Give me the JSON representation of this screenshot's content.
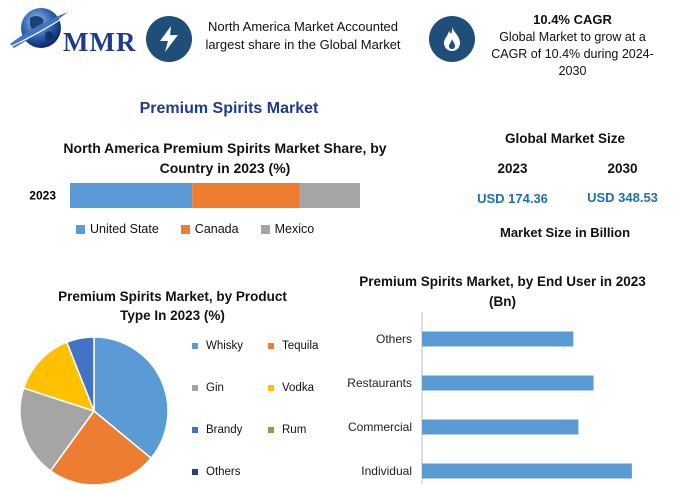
{
  "logo": {
    "text": "MMR"
  },
  "header": {
    "left_text": "North America Market Accounted largest share in the Global Market",
    "right_title": "10.4% CAGR",
    "right_text": "Global Market to grow at a CAGR of 10.4% during 2024-2030",
    "left_icon": "lightning-icon",
    "right_icon": "flame-icon"
  },
  "main_title": "Premium Spirits Market",
  "market_size": {
    "title": "Global Market Size",
    "years": [
      "2023",
      "2030"
    ],
    "values": [
      "USD 174.36",
      "USD 348.53"
    ],
    "footer": "Market Size in Billion"
  },
  "chart_data": [
    {
      "type": "bar",
      "orientation": "horizontal",
      "stacked": true,
      "title": "North America Premium Spirits Market Share, by Country in 2023 (%)",
      "categories": [
        "2023"
      ],
      "series": [
        {
          "name": "United State",
          "values": [
            41
          ],
          "color": "#5b9bd5"
        },
        {
          "name": "Canada",
          "values": [
            36
          ],
          "color": "#ed7d31"
        },
        {
          "name": "Mexico",
          "values": [
            23
          ],
          "color": "#a5a5a5"
        }
      ],
      "legend": "bottom"
    },
    {
      "type": "pie",
      "title": "Premium Spirits Market, by Product Type In 2023 (%)",
      "labels": [
        "Whisky",
        "Tequila",
        "Gin",
        "Vodka",
        "Brandy",
        "Rum",
        "Others"
      ],
      "values": [
        36,
        24,
        20,
        14,
        6,
        0,
        0
      ],
      "colors": [
        "#5b9bd5",
        "#ed7d31",
        "#a5a5a5",
        "#ffc000",
        "#4472c4",
        "#70ad47",
        "#264478"
      ],
      "legend": "right"
    },
    {
      "type": "bar",
      "orientation": "horizontal",
      "title": "Premium Spirits Market, by End User in 2023 (Bn)",
      "categories": [
        "Others",
        "Restaurants",
        "Commercial",
        "Individual"
      ],
      "values": [
        150,
        170,
        155,
        208
      ],
      "xlim": [
        0,
        220
      ],
      "color": "#5b9bd5"
    }
  ]
}
